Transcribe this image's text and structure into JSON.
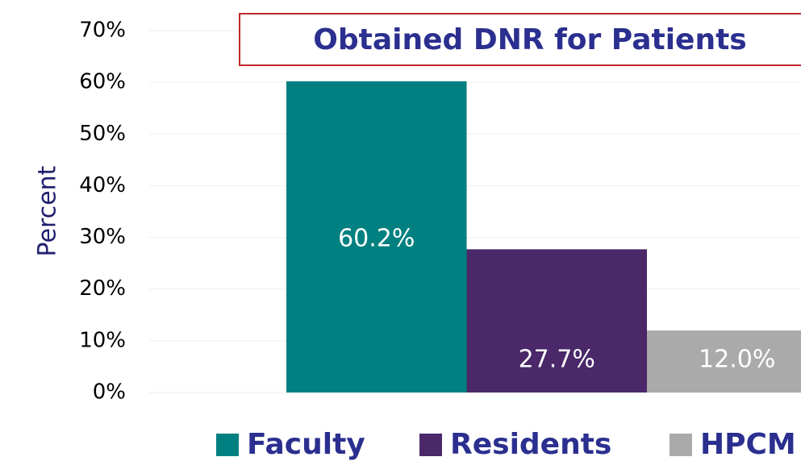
{
  "chart_data": {
    "type": "bar",
    "title": "Obtained DNR for Patients",
    "y_label": "Percent",
    "categories": [
      null
    ],
    "series": [
      {
        "name": "Faculty",
        "color": "#008080",
        "values": [
          60.2
        ],
        "value_labels": [
          "60.2%"
        ]
      },
      {
        "name": "Residents",
        "color": "#4a2869",
        "values": [
          27.7
        ],
        "value_labels": [
          "27.7%"
        ]
      },
      {
        "name": "HPCM",
        "color": "#aaaaaa",
        "values": [
          12.0
        ],
        "value_labels": [
          "12.0%"
        ]
      }
    ],
    "ylim": [
      0,
      70
    ],
    "yticks": [
      {
        "value": 0,
        "label": "0%"
      },
      {
        "value": 10,
        "label": "10%"
      },
      {
        "value": 20,
        "label": "20%"
      },
      {
        "value": 30,
        "label": "30%"
      },
      {
        "value": 40,
        "label": "40%"
      },
      {
        "value": 50,
        "label": "50%"
      },
      {
        "value": 60,
        "label": "60%"
      },
      {
        "value": 70,
        "label": "70%"
      }
    ],
    "grid": true,
    "legend": "bottom"
  }
}
